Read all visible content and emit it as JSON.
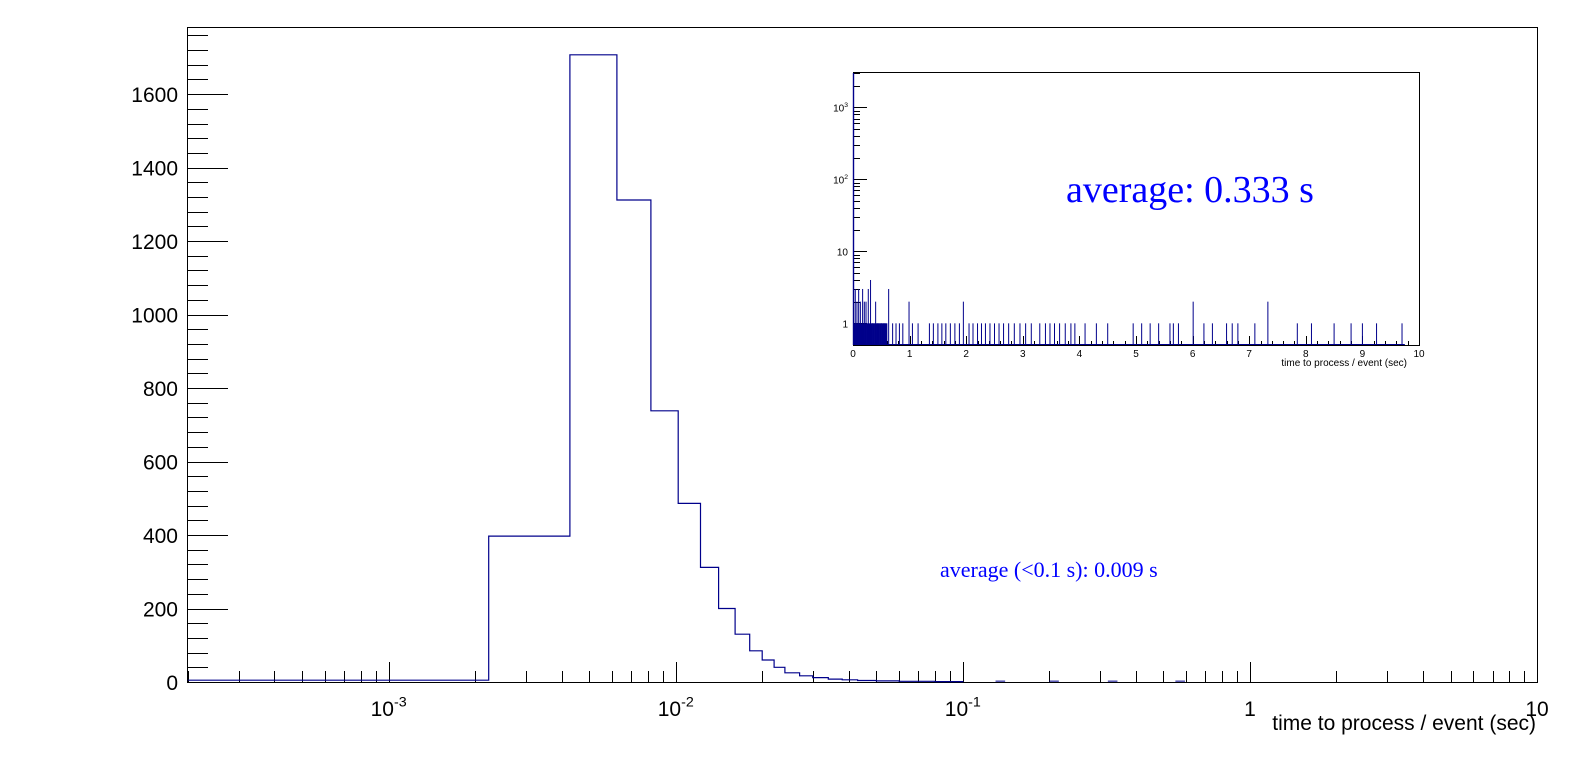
{
  "chart_data": [
    {
      "type": "histogram",
      "x_scale": "log",
      "y_scale": "linear",
      "xlim": [
        0.0002,
        10
      ],
      "ylim": [
        0,
        1780
      ],
      "xlabel": "time to process / event (sec)",
      "ylabel": "",
      "x_tick_labels": [
        {
          "value": 0.001,
          "base": "10",
          "exp": "-3"
        },
        {
          "value": 0.01,
          "base": "10",
          "exp": "-2"
        },
        {
          "value": 0.1,
          "base": "10",
          "exp": "-1"
        },
        {
          "value": 1,
          "base": "1",
          "exp": ""
        },
        {
          "value": 10,
          "base": "10",
          "exp": ""
        }
      ],
      "y_ticks": [
        0,
        200,
        400,
        600,
        800,
        1000,
        1200,
        1400,
        1600
      ],
      "line_color": "#00008B",
      "bin_edges": [
        0.0002,
        0.00223,
        0.00428,
        0.00624,
        0.00819,
        0.0102,
        0.0122,
        0.0141,
        0.0161,
        0.0181,
        0.02,
        0.022,
        0.024,
        0.027,
        0.03,
        0.034,
        0.038,
        0.043,
        0.05,
        0.06,
        0.08,
        0.1
      ],
      "counts": [
        5,
        397,
        1707,
        1312,
        738,
        486,
        312,
        200,
        130,
        85,
        60,
        40,
        25,
        17,
        12,
        8,
        6,
        4,
        3,
        2,
        1
      ],
      "annotation": "average (<0.1 s): 0.009 s",
      "annotation_color": "#0000FF"
    },
    {
      "type": "histogram",
      "inset": true,
      "x_scale": "linear",
      "y_scale": "log",
      "xlim": [
        0,
        10
      ],
      "ylim": [
        0.5,
        3000
      ],
      "xlabel": "time to process / event (sec)",
      "x_ticks": [
        "0",
        "1",
        "2",
        "3",
        "4",
        "5",
        "6",
        "7",
        "8",
        "9",
        "10"
      ],
      "y_tick_labels": [
        {
          "value": 1,
          "base": "1",
          "exp": ""
        },
        {
          "value": 10,
          "base": "10",
          "exp": ""
        },
        {
          "value": 100,
          "base": "10",
          "exp": "2"
        },
        {
          "value": 1000,
          "base": "10",
          "exp": "3"
        }
      ],
      "line_color": "#00008B",
      "first_bin": {
        "x": 0.0,
        "count": 5000
      },
      "bins": [
        {
          "x": 0.04,
          "count": 3
        },
        {
          "x": 0.07,
          "count": 2
        },
        {
          "x": 0.1,
          "count": 3
        },
        {
          "x": 0.13,
          "count": 2
        },
        {
          "x": 0.17,
          "count": 3
        },
        {
          "x": 0.2,
          "count": 2
        },
        {
          "x": 0.23,
          "count": 2
        },
        {
          "x": 0.27,
          "count": 3
        },
        {
          "x": 0.31,
          "count": 4
        },
        {
          "x": 0.4,
          "count": 2
        },
        {
          "x": 0.63,
          "count": 3
        },
        {
          "x": 0.99,
          "count": 2
        },
        {
          "x": 1.95,
          "count": 2
        },
        {
          "x": 6.01,
          "count": 2
        },
        {
          "x": 7.33,
          "count": 2
        },
        {
          "x": 0.35,
          "count": 1
        },
        {
          "x": 0.44,
          "count": 1
        },
        {
          "x": 0.5,
          "count": 1
        },
        {
          "x": 0.55,
          "count": 1
        },
        {
          "x": 0.7,
          "count": 1
        },
        {
          "x": 0.76,
          "count": 1
        },
        {
          "x": 0.82,
          "count": 1
        },
        {
          "x": 0.88,
          "count": 1
        },
        {
          "x": 1.05,
          "count": 1
        },
        {
          "x": 1.15,
          "count": 1
        },
        {
          "x": 1.35,
          "count": 1
        },
        {
          "x": 1.42,
          "count": 1
        },
        {
          "x": 1.5,
          "count": 1
        },
        {
          "x": 1.57,
          "count": 1
        },
        {
          "x": 1.64,
          "count": 1
        },
        {
          "x": 1.72,
          "count": 1
        },
        {
          "x": 1.8,
          "count": 1
        },
        {
          "x": 1.88,
          "count": 1
        },
        {
          "x": 2.05,
          "count": 1
        },
        {
          "x": 2.12,
          "count": 1
        },
        {
          "x": 2.2,
          "count": 1
        },
        {
          "x": 2.27,
          "count": 1
        },
        {
          "x": 2.34,
          "count": 1
        },
        {
          "x": 2.42,
          "count": 1
        },
        {
          "x": 2.5,
          "count": 1
        },
        {
          "x": 2.58,
          "count": 1
        },
        {
          "x": 2.66,
          "count": 1
        },
        {
          "x": 2.75,
          "count": 1
        },
        {
          "x": 2.85,
          "count": 1
        },
        {
          "x": 2.95,
          "count": 1
        },
        {
          "x": 3.05,
          "count": 1
        },
        {
          "x": 3.15,
          "count": 1
        },
        {
          "x": 3.3,
          "count": 1
        },
        {
          "x": 3.4,
          "count": 1
        },
        {
          "x": 3.48,
          "count": 1
        },
        {
          "x": 3.56,
          "count": 1
        },
        {
          "x": 3.65,
          "count": 1
        },
        {
          "x": 3.75,
          "count": 1
        },
        {
          "x": 3.85,
          "count": 1
        },
        {
          "x": 3.92,
          "count": 1
        },
        {
          "x": 4.1,
          "count": 1
        },
        {
          "x": 4.3,
          "count": 1
        },
        {
          "x": 4.5,
          "count": 1
        },
        {
          "x": 4.95,
          "count": 1
        },
        {
          "x": 5.1,
          "count": 1
        },
        {
          "x": 5.25,
          "count": 1
        },
        {
          "x": 5.4,
          "count": 1
        },
        {
          "x": 5.6,
          "count": 1
        },
        {
          "x": 5.66,
          "count": 1
        },
        {
          "x": 5.75,
          "count": 1
        },
        {
          "x": 6.2,
          "count": 1
        },
        {
          "x": 6.35,
          "count": 1
        },
        {
          "x": 6.6,
          "count": 1
        },
        {
          "x": 6.7,
          "count": 1
        },
        {
          "x": 6.8,
          "count": 1
        },
        {
          "x": 7.1,
          "count": 1
        },
        {
          "x": 7.85,
          "count": 1
        },
        {
          "x": 8.1,
          "count": 1
        },
        {
          "x": 8.5,
          "count": 1
        },
        {
          "x": 8.8,
          "count": 1
        },
        {
          "x": 9.0,
          "count": 1
        },
        {
          "x": 9.25,
          "count": 1
        },
        {
          "x": 9.7,
          "count": 1
        }
      ],
      "annotation": "average: 0.333 s",
      "annotation_color": "#0000FF"
    }
  ]
}
